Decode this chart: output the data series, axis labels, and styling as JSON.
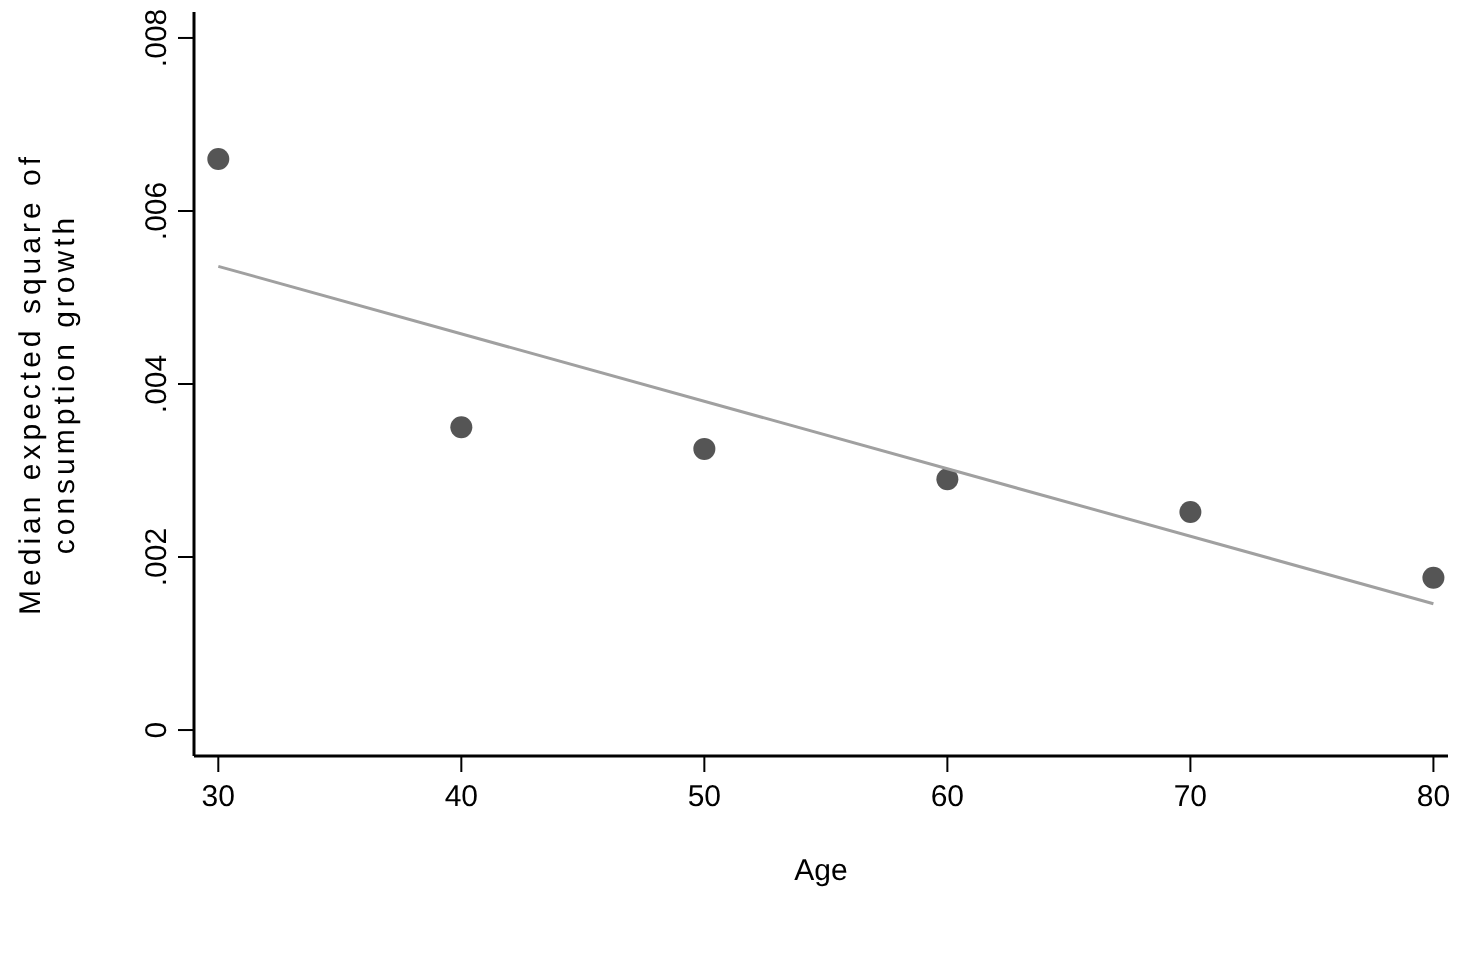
{
  "chart_data": {
    "type": "scatter",
    "xlabel": "Age",
    "ylabel": "Median expected square of\nconsumption growth",
    "xlim": [
      29,
      80.6
    ],
    "ylim": [
      -0.0003,
      0.0083
    ],
    "xticks": [
      30,
      40,
      50,
      60,
      70,
      80
    ],
    "yticks": [
      {
        "value": 0,
        "label": "0"
      },
      {
        "value": 0.002,
        "label": ".002"
      },
      {
        "value": 0.004,
        "label": ".004"
      },
      {
        "value": 0.006,
        "label": ".006"
      },
      {
        "value": 0.008,
        "label": ".008"
      }
    ],
    "grid": false,
    "series": [
      {
        "marker": "circle",
        "color": "#555555",
        "x": [
          30,
          40,
          50,
          60,
          70,
          80
        ],
        "values": [
          0.0066,
          0.0035,
          0.00325,
          0.0029,
          0.00252,
          0.00176
        ]
      },
      {
        "type": "line",
        "color": "#a0a0a0",
        "x": [
          30,
          80
        ],
        "values": [
          0.00536,
          0.00146
        ]
      }
    ]
  }
}
